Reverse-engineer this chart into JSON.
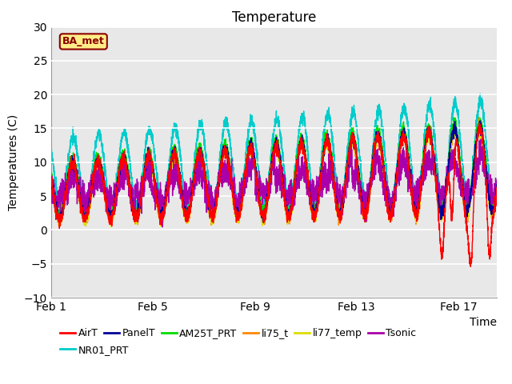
{
  "title": "Temperature",
  "ylabel": "Temperatures (C)",
  "xlabel": "Time",
  "site_label": "BA_met",
  "ylim": [
    -10,
    30
  ],
  "xlim": [
    0,
    17.5
  ],
  "xtick_positions": [
    0,
    4,
    8,
    12,
    16
  ],
  "xtick_labels": [
    "Feb 1",
    "Feb 5",
    "Feb 9",
    "Feb 13",
    "Feb 17"
  ],
  "ytick_positions": [
    -10,
    -5,
    0,
    5,
    10,
    15,
    20,
    25,
    30
  ],
  "bg_color": "#e8e8e8",
  "colors": {
    "AirT": "#ff0000",
    "PanelT": "#000099",
    "AM25T_PRT": "#00dd00",
    "li75_t": "#ff8800",
    "li77_temp": "#dddd00",
    "Tsonic": "#aa00aa",
    "NR01_PRT": "#00cccc"
  },
  "legend_row1": [
    "AirT",
    "PanelT",
    "AM25T_PRT",
    "li75_t",
    "li77_temp",
    "Tsonic"
  ],
  "legend_row2": [
    "NR01_PRT"
  ]
}
